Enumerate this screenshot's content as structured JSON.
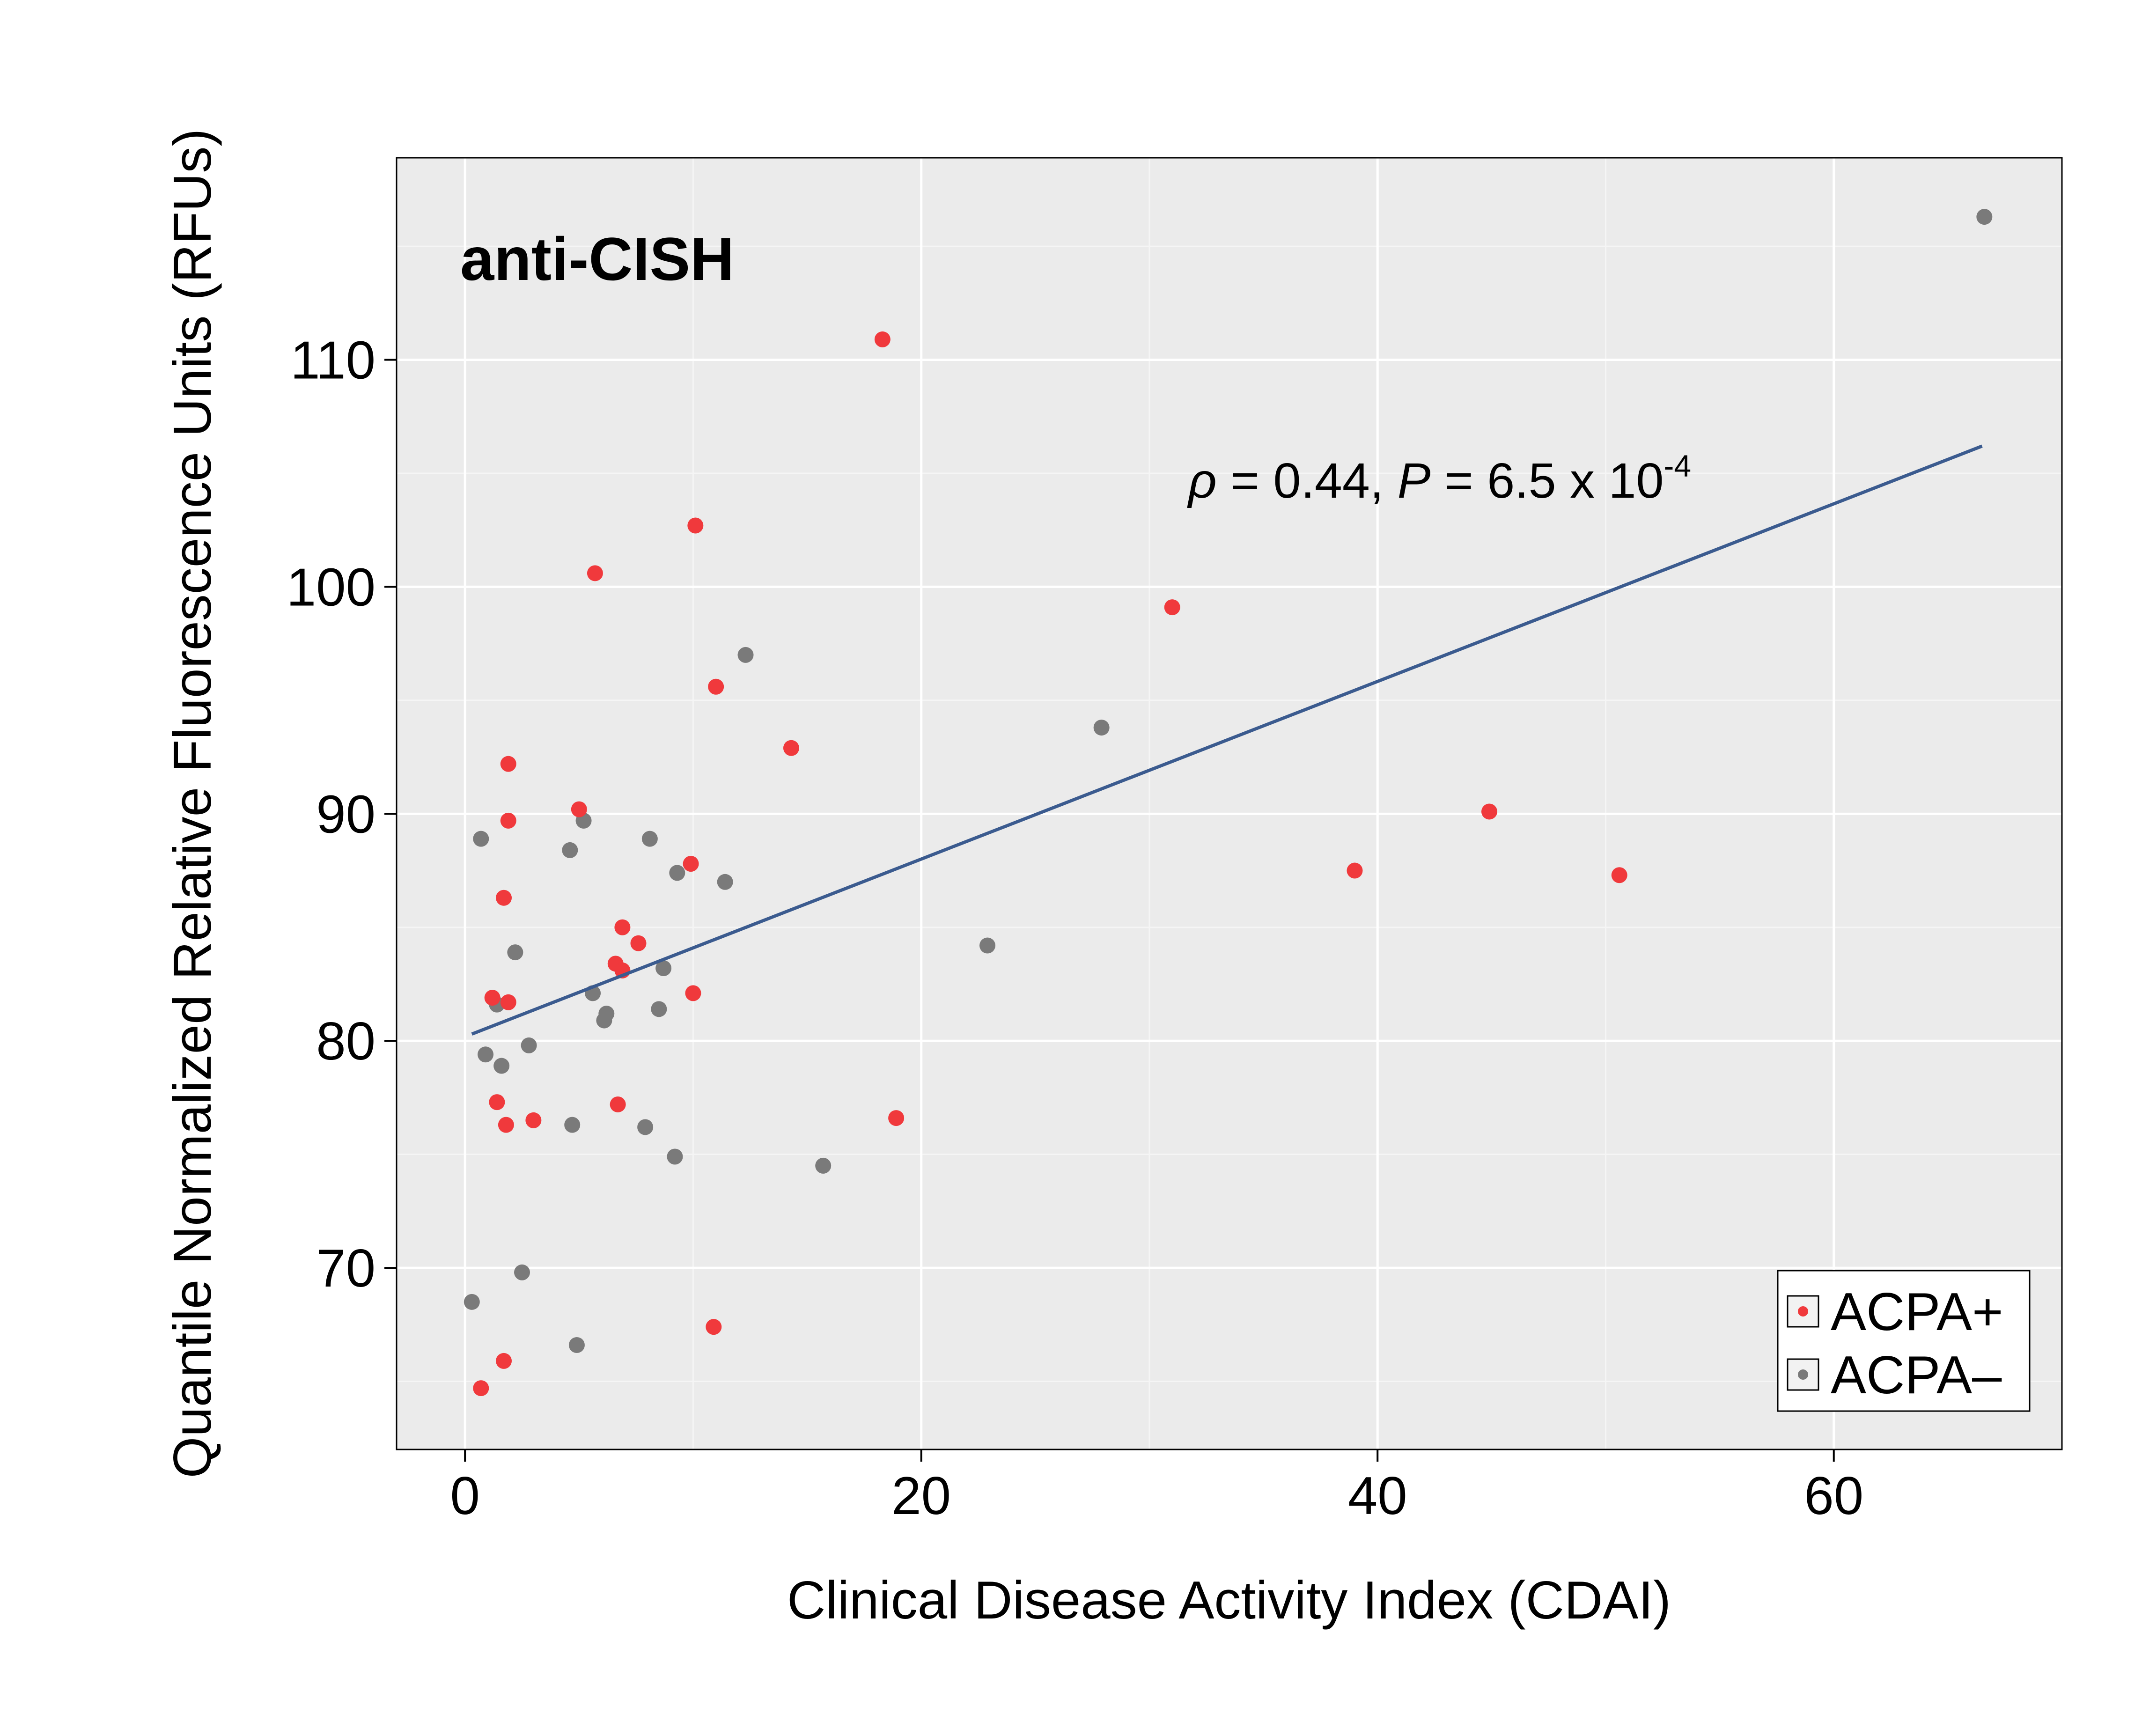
{
  "chart_data": {
    "type": "scatter",
    "title": "anti-CISH",
    "xlabel": "Clinical Disease Activity Index (CDAI)",
    "ylabel": "Quantile Normalized Relative Fluorescence Units (RFUs)",
    "xlim": [
      -3,
      70
    ],
    "ylim": [
      62.0,
      118.9
    ],
    "x_ticks": [
      0,
      20,
      40,
      60
    ],
    "y_ticks": [
      70,
      80,
      90,
      100,
      110
    ],
    "grid": true,
    "legend_position": "bottom-right",
    "colors": {
      "acpa_pos": "#f0393c",
      "acpa_neg": "#7a7a7a",
      "fit_line": "#3b5b8f",
      "panel": "#ebebeb",
      "grid_major": "#ffffff",
      "grid_minor": "#f5f5f5"
    },
    "annotation": {
      "rho_symbol": "ρ",
      "rho_text": " = 0.44, ",
      "p_symbol": "P",
      "p_text": " = 6.5 x 10",
      "p_exponent": "-4"
    },
    "fit_line": {
      "x": [
        0.3,
        66.5
      ],
      "y": [
        80.3,
        106.2
      ]
    },
    "series": [
      {
        "name": "ACPA+",
        "points": [
          [
            18.3,
            110.9
          ],
          [
            10.1,
            102.7
          ],
          [
            5.7,
            100.6
          ],
          [
            31.0,
            99.1
          ],
          [
            11.0,
            95.6
          ],
          [
            14.3,
            92.9
          ],
          [
            1.9,
            92.2
          ],
          [
            1.9,
            89.7
          ],
          [
            5.0,
            90.2
          ],
          [
            44.9,
            90.1
          ],
          [
            9.9,
            87.8
          ],
          [
            39.0,
            87.5
          ],
          [
            50.6,
            87.3
          ],
          [
            1.7,
            86.3
          ],
          [
            6.9,
            85.0
          ],
          [
            7.6,
            84.3
          ],
          [
            6.6,
            83.4
          ],
          [
            6.9,
            83.1
          ],
          [
            1.2,
            81.9
          ],
          [
            1.9,
            81.7
          ],
          [
            10.0,
            82.1
          ],
          [
            1.4,
            77.3
          ],
          [
            1.8,
            76.3
          ],
          [
            3.0,
            76.5
          ],
          [
            6.7,
            77.2
          ],
          [
            18.9,
            76.6
          ],
          [
            10.9,
            67.4
          ],
          [
            1.7,
            65.9
          ],
          [
            0.7,
            64.7
          ]
        ]
      },
      {
        "name": "ACPA–",
        "points": [
          [
            66.6,
            116.3
          ],
          [
            12.3,
            97.0
          ],
          [
            27.9,
            93.8
          ],
          [
            0.7,
            88.9
          ],
          [
            5.2,
            89.7
          ],
          [
            4.6,
            88.4
          ],
          [
            8.1,
            88.9
          ],
          [
            9.3,
            87.4
          ],
          [
            11.4,
            87.0
          ],
          [
            2.2,
            83.9
          ],
          [
            22.9,
            84.2
          ],
          [
            8.7,
            83.2
          ],
          [
            5.6,
            82.1
          ],
          [
            6.2,
            81.2
          ],
          [
            1.4,
            81.6
          ],
          [
            8.5,
            81.4
          ],
          [
            6.1,
            80.9
          ],
          [
            2.8,
            79.8
          ],
          [
            0.9,
            79.4
          ],
          [
            1.6,
            78.9
          ],
          [
            4.7,
            76.3
          ],
          [
            7.9,
            76.2
          ],
          [
            9.2,
            74.9
          ],
          [
            15.7,
            74.5
          ],
          [
            2.5,
            69.8
          ],
          [
            0.3,
            68.5
          ],
          [
            4.9,
            66.6
          ]
        ]
      }
    ]
  }
}
